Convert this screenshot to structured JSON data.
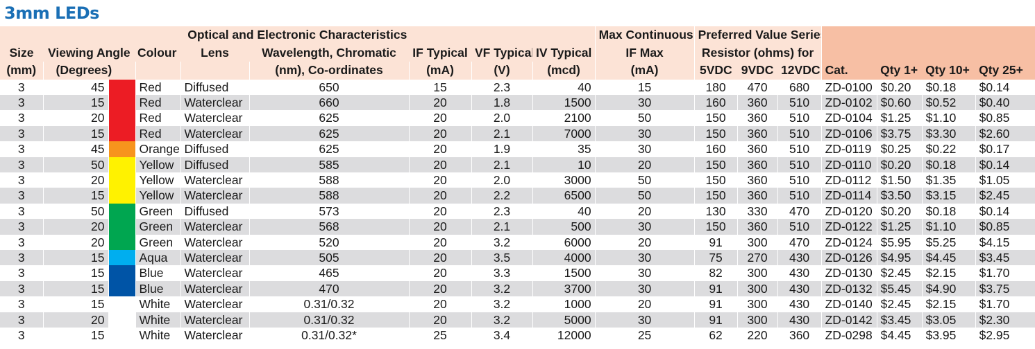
{
  "title": "3mm LEDs",
  "headers": {
    "group_optical": "Optical and Electronic Characteristics",
    "size": [
      "Size",
      "(mm)"
    ],
    "viewing_angle": [
      "Viewing Angle",
      "(Degrees)"
    ],
    "colour": "Colour",
    "lens": "Lens",
    "wavelength": [
      "Wavelength, Chromatic",
      "(nm), Co-ordinates"
    ],
    "if_typical": [
      "IF Typical",
      "(mA)"
    ],
    "vf_typical": [
      "VF Typical",
      "(V)"
    ],
    "iv_typical": [
      "IV Typical",
      "(mcd)"
    ],
    "max_cont": [
      "Max Continuous",
      "IF Max",
      "(mA)"
    ],
    "resistor": [
      "Preferred Value Series",
      "Resistor (ohms) for"
    ],
    "v5": "5VDC",
    "v9": "9VDC",
    "v12": "12VDC",
    "cat": "Cat.",
    "qty1": "Qty 1+",
    "qty10": "Qty 10+",
    "qty25": "Qty 25+"
  },
  "colors": {
    "Red": "#ec1c24",
    "Orange": "#f7941d",
    "Yellow": "#fff200",
    "Green": "#00a650",
    "Aqua": "#00aeef",
    "Blue": "#0054a6",
    "White": "#ffffff"
  },
  "rows": [
    {
      "size": "3",
      "angle": "45",
      "colour": "Red",
      "lens": "Diffused",
      "wavelength": "650",
      "if_typ": "15",
      "vf_typ": "2.3",
      "iv_typ": "40",
      "if_max": "15",
      "r5": "180",
      "r9": "470",
      "r12": "680",
      "cat": "ZD-0100",
      "q1": "$0.20",
      "q10": "$0.18",
      "q25": "$0.14"
    },
    {
      "size": "3",
      "angle": "15",
      "colour": "Red",
      "lens": "Waterclear",
      "wavelength": "660",
      "if_typ": "20",
      "vf_typ": "1.8",
      "iv_typ": "1500",
      "if_max": "30",
      "r5": "160",
      "r9": "360",
      "r12": "510",
      "cat": "ZD-0102",
      "q1": "$0.60",
      "q10": "$0.52",
      "q25": "$0.40"
    },
    {
      "size": "3",
      "angle": "20",
      "colour": "Red",
      "lens": "Waterclear",
      "wavelength": "625",
      "if_typ": "20",
      "vf_typ": "2.0",
      "iv_typ": "2100",
      "if_max": "50",
      "r5": "150",
      "r9": "360",
      "r12": "510",
      "cat": "ZD-0104",
      "q1": "$1.25",
      "q10": "$1.10",
      "q25": "$0.85"
    },
    {
      "size": "3",
      "angle": "15",
      "colour": "Red",
      "lens": "Waterclear",
      "wavelength": "625",
      "if_typ": "20",
      "vf_typ": "2.1",
      "iv_typ": "7000",
      "if_max": "30",
      "r5": "150",
      "r9": "360",
      "r12": "510",
      "cat": "ZD-0106",
      "q1": "$3.75",
      "q10": "$3.30",
      "q25": "$2.60"
    },
    {
      "size": "3",
      "angle": "45",
      "colour": "Orange",
      "lens": "Diffused",
      "wavelength": "625",
      "if_typ": "20",
      "vf_typ": "1.9",
      "iv_typ": "35",
      "if_max": "30",
      "r5": "160",
      "r9": "360",
      "r12": "510",
      "cat": "ZD-0119",
      "q1": "$0.25",
      "q10": "$0.22",
      "q25": "$0.17"
    },
    {
      "size": "3",
      "angle": "50",
      "colour": "Yellow",
      "lens": "Diffused",
      "wavelength": "585",
      "if_typ": "20",
      "vf_typ": "2.1",
      "iv_typ": "10",
      "if_max": "20",
      "r5": "150",
      "r9": "360",
      "r12": "510",
      "cat": "ZD-0110",
      "q1": "$0.20",
      "q10": "$0.18",
      "q25": "$0.14"
    },
    {
      "size": "3",
      "angle": "20",
      "colour": "Yellow",
      "lens": "Waterclear",
      "wavelength": "588",
      "if_typ": "20",
      "vf_typ": "2.0",
      "iv_typ": "3000",
      "if_max": "50",
      "r5": "150",
      "r9": "360",
      "r12": "510",
      "cat": "ZD-0112",
      "q1": "$1.50",
      "q10": "$1.35",
      "q25": "$1.05"
    },
    {
      "size": "3",
      "angle": "15",
      "colour": "Yellow",
      "lens": "Waterclear",
      "wavelength": "588",
      "if_typ": "20",
      "vf_typ": "2.2",
      "iv_typ": "6500",
      "if_max": "50",
      "r5": "150",
      "r9": "360",
      "r12": "510",
      "cat": "ZD-0114",
      "q1": "$3.50",
      "q10": "$3.15",
      "q25": "$2.45"
    },
    {
      "size": "3",
      "angle": "50",
      "colour": "Green",
      "lens": "Diffused",
      "wavelength": "573",
      "if_typ": "20",
      "vf_typ": "2.3",
      "iv_typ": "40",
      "if_max": "20",
      "r5": "130",
      "r9": "330",
      "r12": "470",
      "cat": "ZD-0120",
      "q1": "$0.20",
      "q10": "$0.18",
      "q25": "$0.14"
    },
    {
      "size": "3",
      "angle": "20",
      "colour": "Green",
      "lens": "Waterclear",
      "wavelength": "568",
      "if_typ": "20",
      "vf_typ": "2.1",
      "iv_typ": "500",
      "if_max": "30",
      "r5": "150",
      "r9": "360",
      "r12": "510",
      "cat": "ZD-0122",
      "q1": "$1.25",
      "q10": "$1.10",
      "q25": "$0.85"
    },
    {
      "size": "3",
      "angle": "20",
      "colour": "Green",
      "lens": "Waterclear",
      "wavelength": "520",
      "if_typ": "20",
      "vf_typ": "3.2",
      "iv_typ": "6000",
      "if_max": "20",
      "r5": "91",
      "r9": "300",
      "r12": "470",
      "cat": "ZD-0124",
      "q1": "$5.95",
      "q10": "$5.25",
      "q25": "$4.15"
    },
    {
      "size": "3",
      "angle": "15",
      "colour": "Aqua",
      "lens": "Waterclear",
      "wavelength": "505",
      "if_typ": "20",
      "vf_typ": "3.5",
      "iv_typ": "4000",
      "if_max": "30",
      "r5": "75",
      "r9": "270",
      "r12": "430",
      "cat": "ZD-0126",
      "q1": "$4.95",
      "q10": "$4.45",
      "q25": "$3.45"
    },
    {
      "size": "3",
      "angle": "15",
      "colour": "Blue",
      "lens": "Waterclear",
      "wavelength": "465",
      "if_typ": "20",
      "vf_typ": "3.3",
      "iv_typ": "1500",
      "if_max": "30",
      "r5": "82",
      "r9": "300",
      "r12": "430",
      "cat": "ZD-0130",
      "q1": "$2.45",
      "q10": "$2.15",
      "q25": "$1.70"
    },
    {
      "size": "3",
      "angle": "15",
      "colour": "Blue",
      "lens": "Waterclear",
      "wavelength": "470",
      "if_typ": "20",
      "vf_typ": "3.2",
      "iv_typ": "3700",
      "if_max": "30",
      "r5": "91",
      "r9": "300",
      "r12": "430",
      "cat": "ZD-0132",
      "q1": "$5.45",
      "q10": "$4.90",
      "q25": "$3.75"
    },
    {
      "size": "3",
      "angle": "15",
      "colour": "White",
      "lens": "Waterclear",
      "wavelength": "0.31/0.32",
      "if_typ": "20",
      "vf_typ": "3.2",
      "iv_typ": "1000",
      "if_max": "20",
      "r5": "91",
      "r9": "300",
      "r12": "430",
      "cat": "ZD-0140",
      "q1": "$2.45",
      "q10": "$2.15",
      "q25": "$1.70"
    },
    {
      "size": "3",
      "angle": "20",
      "colour": "White",
      "lens": "Waterclear",
      "wavelength": "0.31/0.32",
      "if_typ": "20",
      "vf_typ": "3.2",
      "iv_typ": "5000",
      "if_max": "30",
      "r5": "91",
      "r9": "300",
      "r12": "430",
      "cat": "ZD-0142",
      "q1": "$3.45",
      "q10": "$3.05",
      "q25": "$2.30"
    },
    {
      "size": "3",
      "angle": "15",
      "colour": "White",
      "lens": "Waterclear",
      "wavelength": "0.31/0.32*",
      "if_typ": "25",
      "vf_typ": "3.4",
      "iv_typ": "12000",
      "if_max": "25",
      "r5": "62",
      "r9": "220",
      "r12": "360",
      "cat": "ZD-0298",
      "q1": "$4.45",
      "q10": "$3.95",
      "q25": "$2.95"
    }
  ]
}
